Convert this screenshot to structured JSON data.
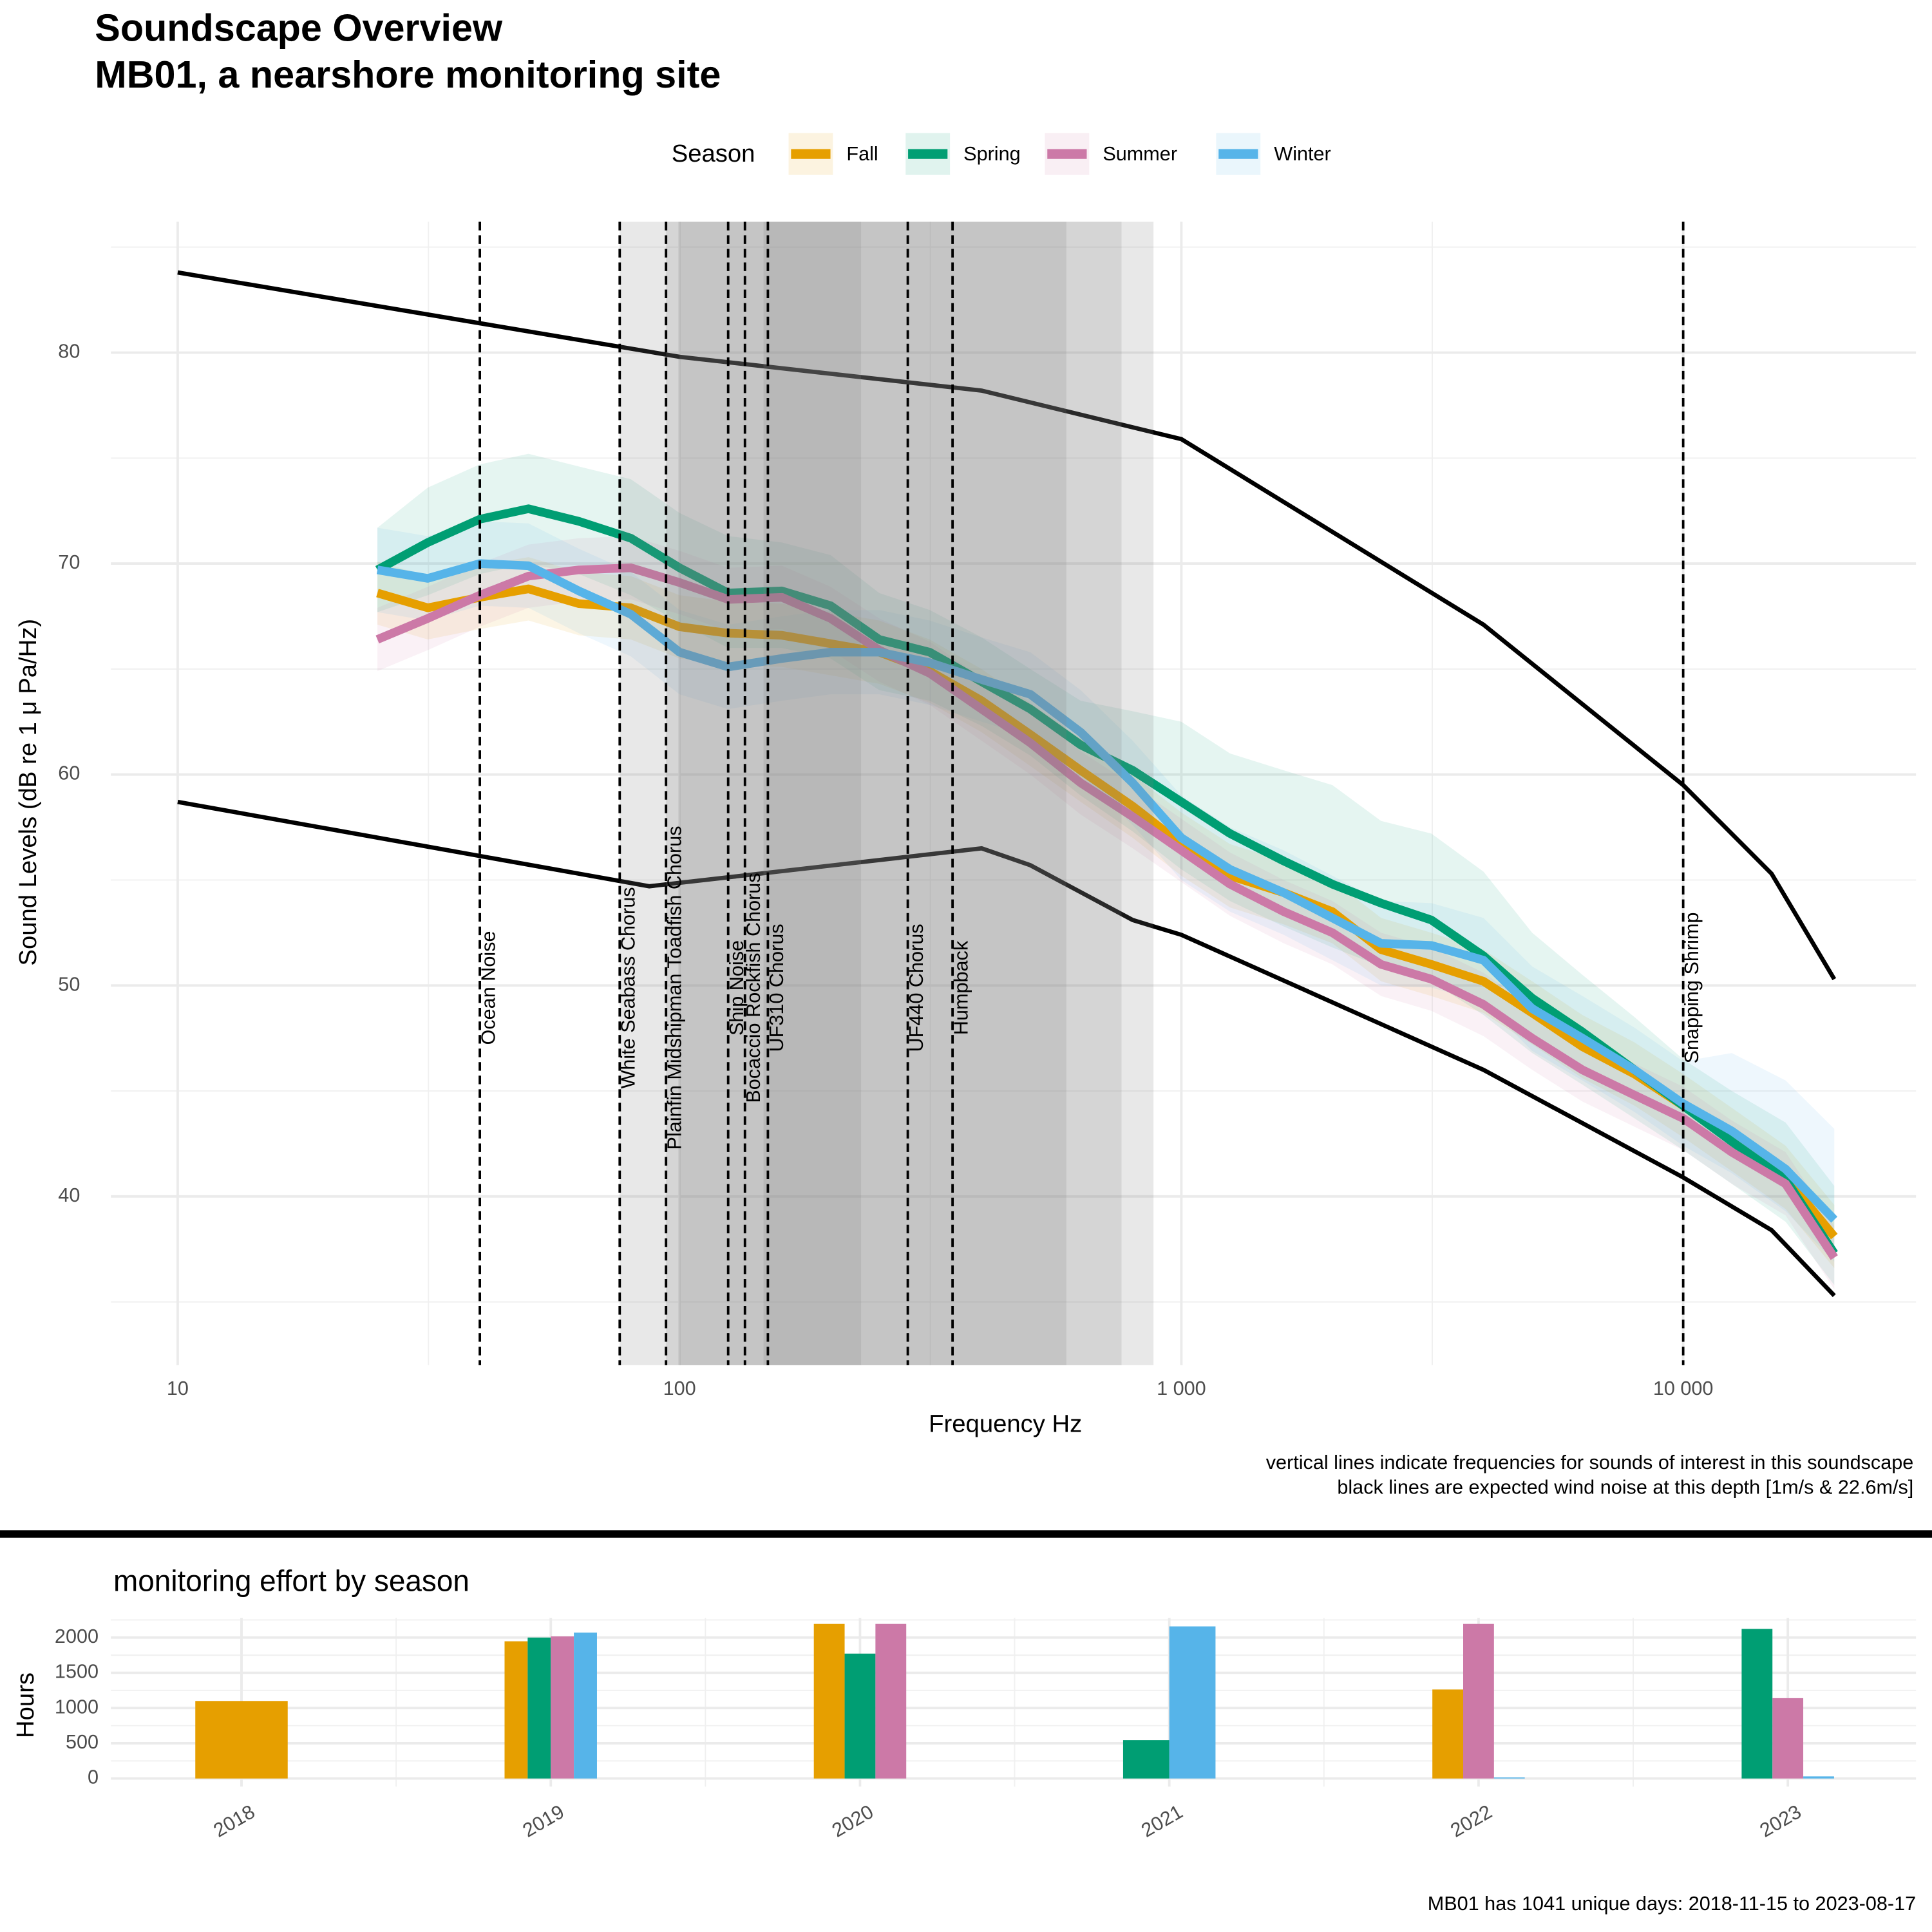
{
  "title": "Soundscape Overview",
  "subtitle": "MB01, a nearshore monitoring site",
  "chart_data": [
    {
      "type": "line",
      "x_label": "Frequency Hz",
      "y_label": "Sound Levels (dB re 1 μ Pa/Hz)",
      "x_scale": "log",
      "xlim": [
        7.36,
        29100
      ],
      "ylim": [
        32,
        86.2
      ],
      "xticks": [
        10,
        100,
        {
          "value": 1000,
          "label": "1 000"
        },
        {
          "value": 10000,
          "label": "10 000"
        }
      ],
      "xminorticks": [
        31.6,
        316,
        3162
      ],
      "yticks": [
        40,
        50,
        60,
        70,
        80
      ],
      "yminorticks": [
        35,
        45,
        55,
        65,
        75,
        85
      ],
      "grid": true,
      "legend_title": "Season",
      "legend_position": "top",
      "x": [
        25,
        31.5,
        40,
        50,
        63,
        80,
        100,
        125,
        160,
        200,
        250,
        315,
        400,
        500,
        630,
        800,
        1000,
        1250,
        1600,
        2000,
        2500,
        3150,
        4000,
        5000,
        6300,
        8000,
        10000,
        12500,
        16000,
        20000
      ],
      "series": [
        {
          "name": "Fall",
          "color": "#E69F00",
          "values": [
            68.6,
            67.9,
            68.4,
            68.8,
            68.1,
            67.9,
            67.0,
            66.7,
            66.6,
            66.2,
            65.8,
            64.9,
            63.5,
            61.9,
            60.2,
            58.5,
            56.7,
            55.2,
            54.4,
            53.5,
            51.7,
            51.0,
            50.2,
            48.7,
            47.1,
            45.8,
            44.3,
            42.7,
            40.9,
            38.1
          ],
          "upper": [
            70.1,
            69.4,
            69.9,
            70.3,
            69.6,
            69.4,
            68.5,
            68.2,
            68.1,
            67.7,
            67.3,
            66.4,
            65.0,
            63.4,
            61.7,
            60.0,
            58.2,
            56.7,
            55.9,
            55.0,
            53.2,
            52.5,
            51.7,
            50.2,
            48.6,
            47.3,
            45.8,
            44.2,
            42.4,
            39.6
          ],
          "lower": [
            67.1,
            66.4,
            66.9,
            67.3,
            66.6,
            66.4,
            65.5,
            65.2,
            65.1,
            64.7,
            64.3,
            63.4,
            62.0,
            60.4,
            58.7,
            57.0,
            55.2,
            53.7,
            52.9,
            52.0,
            50.2,
            49.5,
            48.7,
            47.2,
            45.6,
            44.3,
            42.8,
            41.2,
            39.4,
            36.6
          ]
        },
        {
          "name": "Spring",
          "color": "#009E73",
          "values": [
            69.7,
            71.0,
            72.1,
            72.6,
            72.0,
            71.2,
            69.8,
            68.6,
            68.7,
            68.0,
            66.4,
            65.8,
            64.4,
            63.1,
            61.4,
            60.2,
            58.7,
            57.2,
            55.9,
            54.8,
            53.9,
            53.1,
            51.4,
            49.4,
            47.8,
            46.0,
            44.3,
            42.6,
            40.8,
            37.3
          ],
          "upper": [
            71.7,
            73.6,
            74.7,
            75.2,
            74.6,
            74.0,
            72.4,
            71.3,
            71.0,
            70.4,
            68.6,
            67.8,
            66.5,
            65.0,
            63.5,
            63.0,
            62.5,
            61.0,
            60.2,
            59.5,
            57.8,
            57.2,
            55.4,
            52.5,
            50.5,
            48.5,
            46.5,
            45.0,
            43.5,
            40.5
          ],
          "lower": [
            67.7,
            68.5,
            69.5,
            70.0,
            69.5,
            68.5,
            67.2,
            66.0,
            66.0,
            65.5,
            64.0,
            63.5,
            62.3,
            60.9,
            59.0,
            57.3,
            55.5,
            54.0,
            52.8,
            51.8,
            50.9,
            50.2,
            48.6,
            46.8,
            45.3,
            43.7,
            42.2,
            40.6,
            38.8,
            35.8
          ]
        },
        {
          "name": "Summer",
          "color": "#CC79A7",
          "values": [
            66.4,
            67.4,
            68.5,
            69.4,
            69.7,
            69.8,
            69.1,
            68.3,
            68.4,
            67.4,
            65.9,
            64.8,
            63.1,
            61.5,
            59.6,
            58.0,
            56.4,
            54.8,
            53.5,
            52.5,
            51.0,
            50.3,
            49.1,
            47.5,
            46.0,
            44.8,
            43.7,
            42.1,
            40.6,
            37.1
          ],
          "upper": [
            67.9,
            68.9,
            70.0,
            70.9,
            71.2,
            71.3,
            70.6,
            69.8,
            69.9,
            68.9,
            67.4,
            66.3,
            64.6,
            63.0,
            61.1,
            59.5,
            57.9,
            56.3,
            55.0,
            54.0,
            52.5,
            51.8,
            50.6,
            49.0,
            47.5,
            46.3,
            45.2,
            43.6,
            42.1,
            38.6
          ],
          "lower": [
            64.9,
            65.9,
            67.0,
            67.9,
            68.2,
            68.3,
            67.6,
            66.8,
            66.9,
            65.9,
            64.4,
            63.3,
            61.6,
            60.0,
            58.1,
            56.5,
            54.9,
            53.3,
            52.0,
            51.0,
            49.5,
            48.8,
            47.6,
            46.0,
            44.5,
            43.3,
            42.2,
            40.6,
            39.1,
            35.6
          ]
        },
        {
          "name": "Winter",
          "color": "#56B4E9",
          "values": [
            69.7,
            69.3,
            70.0,
            69.9,
            68.7,
            67.6,
            65.8,
            65.1,
            65.5,
            65.8,
            65.8,
            65.3,
            64.5,
            63.8,
            62.0,
            59.6,
            57.0,
            55.5,
            54.4,
            53.2,
            52.0,
            51.9,
            51.2,
            48.9,
            47.5,
            46.0,
            44.4,
            43.1,
            41.3,
            38.9
          ],
          "upper": [
            71.7,
            71.3,
            72.0,
            71.9,
            70.7,
            69.6,
            67.8,
            67.1,
            67.5,
            67.8,
            67.8,
            67.3,
            66.5,
            65.8,
            64.0,
            61.6,
            59.0,
            57.5,
            56.4,
            55.2,
            54.0,
            53.9,
            53.2,
            50.9,
            49.5,
            48.0,
            46.4,
            46.8,
            45.5,
            43.2
          ],
          "lower": [
            67.7,
            67.3,
            68.0,
            67.9,
            66.7,
            65.6,
            63.8,
            63.1,
            63.5,
            63.8,
            63.8,
            63.3,
            62.5,
            61.8,
            60.0,
            57.6,
            55.0,
            53.5,
            52.4,
            51.2,
            50.0,
            49.9,
            49.2,
            46.9,
            45.5,
            44.0,
            42.4,
            41.1,
            39.3,
            36.9
          ]
        }
      ],
      "wind_noise": [
        {
          "color": "#000000",
          "x": [
            10,
            100,
            400,
            1000,
            4000,
            10000,
            15000,
            20000
          ],
          "values": [
            83.8,
            79.8,
            78.2,
            75.9,
            67.1,
            59.5,
            55.3,
            50.3
          ]
        },
        {
          "color": "#000000",
          "x": [
            10,
            87,
            400,
            500,
            800,
            1000,
            4000,
            10000,
            15000,
            20000
          ],
          "values": [
            58.7,
            54.7,
            56.5,
            55.7,
            53.1,
            52.4,
            46.0,
            40.9,
            38.4,
            35.3
          ]
        }
      ],
      "shaded_ranges": [
        [
          76,
          880
        ],
        [
          94,
          760
        ],
        [
          100,
          590
        ],
        [
          147,
          230
        ]
      ],
      "shade_color": "#7f7f7f",
      "markers": [
        {
          "label": "Ocean Noise",
          "x": 40
        },
        {
          "label": "White Seabass Chorus",
          "x": 76
        },
        {
          "label": "Plainfin Midshipman Toadfish Chorus",
          "x": 94
        },
        {
          "label": "Ship Noise",
          "x": 125
        },
        {
          "label": "Bocaccio Rockfish Chorus",
          "x": 135
        },
        {
          "label": "UF310 Chorus",
          "x": 150
        },
        {
          "label": "UF440 Chorus",
          "x": 285
        },
        {
          "label": "Humpback",
          "x": 350
        },
        {
          "label": "Snapping Shrimp",
          "x": 10000
        }
      ],
      "captions": [
        "vertical lines indicate frequencies for sounds of interest in this soundscape",
        "black lines are expected wind noise at this depth [1m/s & 22.6m/s]"
      ]
    },
    {
      "type": "bar",
      "title": "monitoring effort by season",
      "y_label": "Hours",
      "categories": [
        "2018",
        "2019",
        "2020",
        "2021",
        "2022",
        "2023"
      ],
      "ylim": [
        -115,
        2280
      ],
      "yticks": [
        0,
        500,
        1000,
        1500,
        2000
      ],
      "yminorticks": [
        250,
        750,
        1250,
        1750,
        2250
      ],
      "grid": true,
      "series": [
        {
          "name": "Fall",
          "color": "#E69F00",
          "values": [
            1100,
            1947,
            2193,
            null,
            1263,
            null
          ]
        },
        {
          "name": "Spring",
          "color": "#009E73",
          "values": [
            null,
            2000,
            1772,
            544,
            null,
            2123
          ]
        },
        {
          "name": "Summer",
          "color": "#CC79A7",
          "values": [
            null,
            2017,
            2193,
            null,
            2193,
            1140
          ]
        },
        {
          "name": "Winter",
          "color": "#56B4E9",
          "values": [
            null,
            2070,
            null,
            2158,
            15,
            30
          ]
        }
      ],
      "caption": "MB01 has 1041 unique days: 2018-11-15 to 2023-08-17"
    }
  ]
}
